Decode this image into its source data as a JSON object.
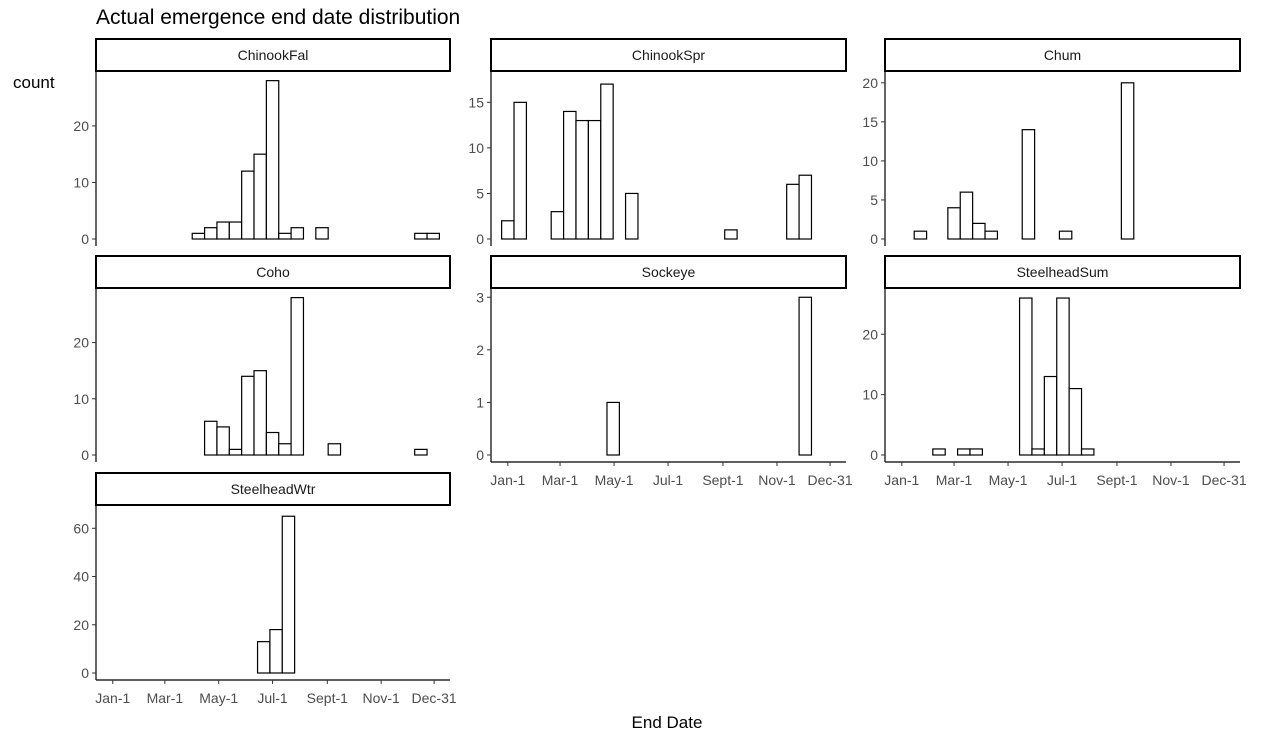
{
  "title": "Actual emergence end date distribution",
  "ylabel": "count",
  "xlabel": "End Date",
  "x_ticks": [
    "Jan-1",
    "Mar-1",
    "May-1",
    "Jul-1",
    "Sept-1",
    "Nov-1",
    "Dec-31"
  ],
  "chart_data": {
    "type": "bar",
    "title": "Actual emergence end date distribution",
    "xlabel": "End Date",
    "ylabel": "count",
    "x_tick_labels": [
      "Jan-1",
      "Mar-1",
      "May-1",
      "Jul-1",
      "Sept-1",
      "Nov-1",
      "Dec-31"
    ],
    "grid": false,
    "bins_unit": "approx. 2-week bins of end date (bin centers as MM-DD)",
    "panels": [
      {
        "name": "ChinookFal",
        "ylim": [
          0,
          29
        ],
        "yticks": [
          0,
          10,
          20
        ],
        "bins": [
          [
            "04-08",
            1
          ],
          [
            "04-22",
            2
          ],
          [
            "05-06",
            3
          ],
          [
            "05-20",
            3
          ],
          [
            "06-03",
            12
          ],
          [
            "06-17",
            15
          ],
          [
            "07-01",
            28
          ],
          [
            "07-15",
            1
          ],
          [
            "07-29",
            2
          ],
          [
            "08-26",
            2
          ],
          [
            "12-16",
            1
          ],
          [
            "12-30",
            1
          ]
        ]
      },
      {
        "name": "ChinookSpr",
        "ylim": [
          0,
          18
        ],
        "yticks": [
          0,
          5,
          10,
          15
        ],
        "bins": [
          [
            "01-01",
            2
          ],
          [
            "01-15",
            15
          ],
          [
            "02-26",
            3
          ],
          [
            "03-12",
            14
          ],
          [
            "03-26",
            13
          ],
          [
            "04-09",
            13
          ],
          [
            "04-23",
            17
          ],
          [
            "05-21",
            5
          ],
          [
            "09-10",
            1
          ],
          [
            "11-19",
            6
          ],
          [
            "12-03",
            7
          ]
        ]
      },
      {
        "name": "Chum",
        "ylim": [
          0,
          21
        ],
        "yticks": [
          0,
          5,
          10,
          15,
          20
        ],
        "bins": [
          [
            "01-22",
            1
          ],
          [
            "03-01",
            4
          ],
          [
            "03-15",
            6
          ],
          [
            "03-29",
            2
          ],
          [
            "04-12",
            1
          ],
          [
            "05-24",
            14
          ],
          [
            "07-05",
            1
          ],
          [
            "09-13",
            20
          ]
        ]
      },
      {
        "name": "Coho",
        "ylim": [
          0,
          29
        ],
        "yticks": [
          0,
          10,
          20
        ],
        "bins": [
          [
            "04-22",
            6
          ],
          [
            "05-06",
            5
          ],
          [
            "05-20",
            1
          ],
          [
            "06-03",
            14
          ],
          [
            "06-17",
            15
          ],
          [
            "07-01",
            4
          ],
          [
            "07-15",
            2
          ],
          [
            "07-29",
            28
          ],
          [
            "09-09",
            2
          ],
          [
            "12-16",
            1
          ]
        ]
      },
      {
        "name": "Sockeye",
        "ylim": [
          0,
          3.1
        ],
        "yticks": [
          0,
          1,
          2,
          3
        ],
        "bins": [
          [
            "04-30",
            1
          ],
          [
            "12-03",
            3
          ]
        ]
      },
      {
        "name": "SteelheadSum",
        "ylim": [
          0,
          27
        ],
        "yticks": [
          0,
          10,
          20
        ],
        "bins": [
          [
            "02-12",
            1
          ],
          [
            "03-12",
            1
          ],
          [
            "03-26",
            1
          ],
          [
            "05-21",
            26
          ],
          [
            "06-04",
            1
          ],
          [
            "06-18",
            13
          ],
          [
            "07-02",
            26
          ],
          [
            "07-16",
            11
          ],
          [
            "07-30",
            1
          ]
        ]
      },
      {
        "name": "SteelheadWtr",
        "ylim": [
          0,
          68
        ],
        "yticks": [
          0,
          20,
          40,
          60
        ],
        "bins": [
          [
            "06-21",
            13
          ],
          [
            "07-05",
            18
          ],
          [
            "07-19",
            65
          ]
        ]
      }
    ]
  }
}
